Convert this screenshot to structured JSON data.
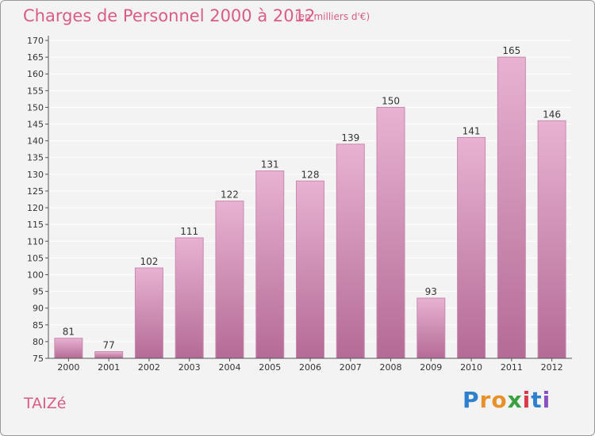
{
  "header": {
    "title": "Charges de Personnel 2000 à 2012",
    "subtitle": "(en milliers d'€)"
  },
  "footer": {
    "commune": "TAIZé",
    "logo_letters": [
      "P",
      "r",
      "o",
      "x",
      "i",
      "t",
      "i"
    ],
    "logo_colors": [
      "#2f7fcf",
      "#e8902a",
      "#e8902a",
      "#3aa040",
      "#d83a4a",
      "#2f7fcf",
      "#8a4fc0"
    ]
  },
  "colors": {
    "bar_top": "#e8b2d2",
    "bar_bottom": "#b46b96",
    "bar_stroke": "#c88aaf",
    "text": "#333333",
    "grid": "#ffffff"
  },
  "chart_data": {
    "type": "bar",
    "categories": [
      "2000",
      "2001",
      "2002",
      "2003",
      "2004",
      "2005",
      "2006",
      "2007",
      "2008",
      "2009",
      "2010",
      "2011",
      "2012"
    ],
    "values": [
      81,
      77,
      102,
      111,
      122,
      131,
      128,
      139,
      150,
      93,
      141,
      165,
      146
    ],
    "ylim": [
      75,
      170
    ],
    "yticks": [
      75,
      80,
      85,
      90,
      95,
      100,
      105,
      110,
      115,
      120,
      125,
      130,
      135,
      140,
      145,
      150,
      155,
      160,
      165,
      170
    ],
    "grid": true,
    "data_labels": true
  }
}
